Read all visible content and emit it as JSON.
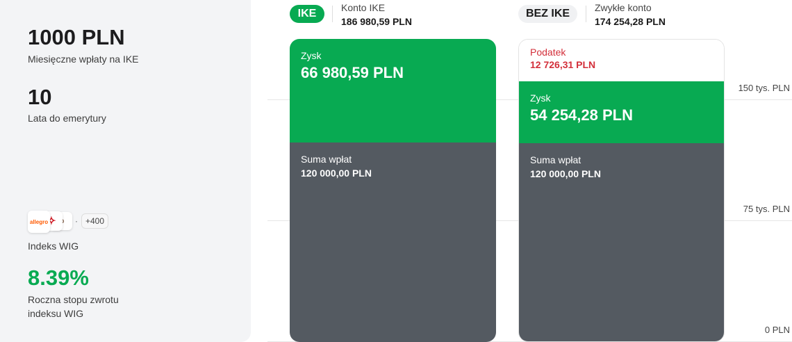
{
  "left": {
    "monthly": {
      "value": "1000 PLN",
      "label": "Miesięczne wpłaty na IKE"
    },
    "years": {
      "value": "10",
      "label": "Lata do emerytury"
    },
    "index": {
      "logos": [
        "allegro",
        "orlen",
        "cd-projekt"
      ],
      "allegro_text": "allegro",
      "more": "+400",
      "label": "Indeks WIG"
    },
    "return": {
      "value": "8.39%",
      "label_line1": "Roczna stopu zwrotu",
      "label_line2": "indeksu WIG"
    }
  },
  "axis": {
    "ticks": [
      "150 tys. PLN",
      "75 tys. PLN",
      "0 PLN"
    ]
  },
  "ike": {
    "badge": "IKE",
    "label": "Konto IKE",
    "total": "186 980,59 PLN",
    "profit_label": "Zysk",
    "profit": "66 980,59 PLN",
    "deposits_label": "Suma wpłat",
    "deposits": "120 000,00 PLN"
  },
  "bez": {
    "badge": "BEZ IKE",
    "label": "Zwykłe konto",
    "total": "174 254,28 PLN",
    "tax_label": "Podatek",
    "tax": "12 726,31 PLN",
    "profit_label": "Zysk",
    "profit": "54 254,28 PLN",
    "deposits_label": "Suma wpłat",
    "deposits": "120 000,00 PLN"
  },
  "colors": {
    "green": "#08aa52",
    "gray": "#545a61",
    "red": "#d32f3a"
  }
}
